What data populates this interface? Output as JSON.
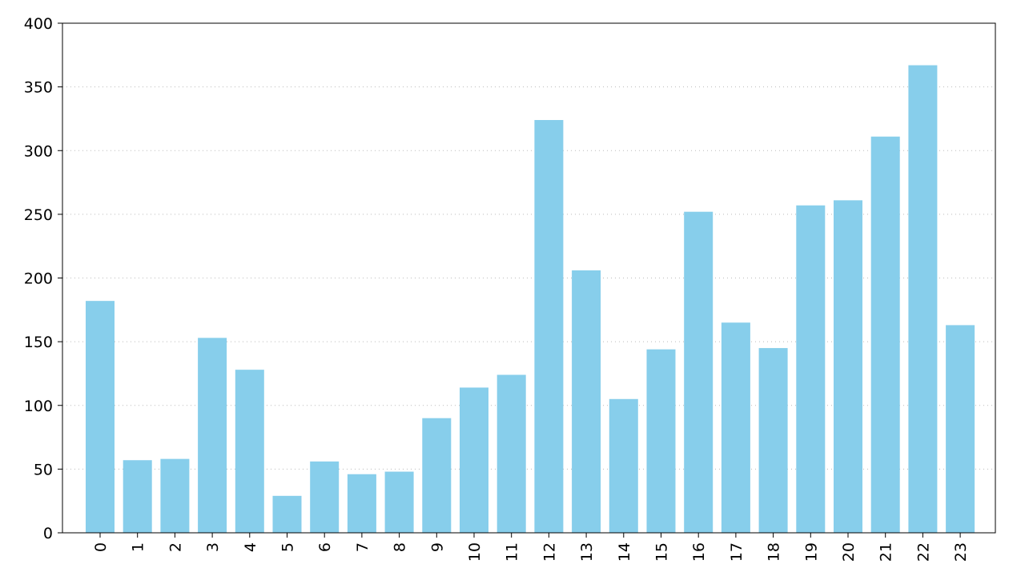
{
  "chart_data": {
    "type": "bar",
    "title": "",
    "xlabel": "",
    "ylabel": "",
    "categories": [
      "0",
      "1",
      "2",
      "3",
      "4",
      "5",
      "6",
      "7",
      "8",
      "9",
      "10",
      "11",
      "12",
      "13",
      "14",
      "15",
      "16",
      "17",
      "18",
      "19",
      "20",
      "21",
      "22",
      "23"
    ],
    "values": [
      182,
      57,
      58,
      153,
      128,
      29,
      56,
      46,
      48,
      90,
      114,
      124,
      324,
      206,
      105,
      144,
      252,
      165,
      145,
      257,
      261,
      311,
      367,
      163
    ],
    "ylim": [
      0,
      400
    ],
    "yticks": [
      "0",
      "50",
      "100",
      "150",
      "200",
      "250",
      "300",
      "350",
      "400"
    ],
    "grid": true,
    "bar_color": "#87ceeb"
  }
}
